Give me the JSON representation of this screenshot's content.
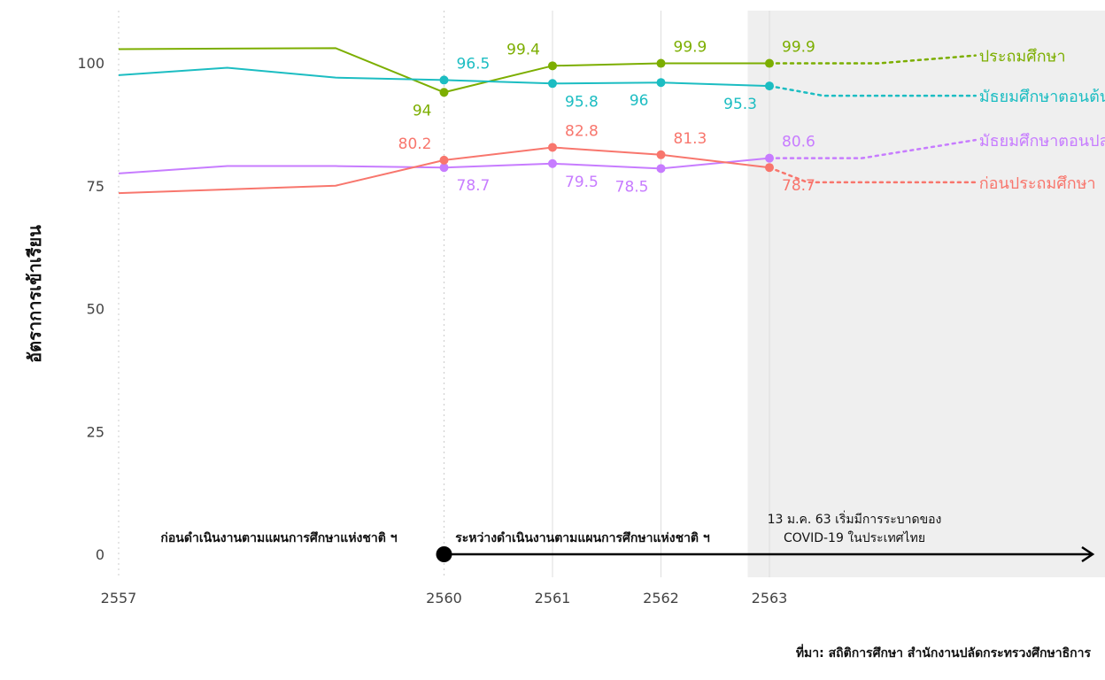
{
  "chart_data": {
    "type": "line",
    "ylabel": "อัตราการเข้าเรียน",
    "xlabel": "",
    "ylim": [
      -5,
      110
    ],
    "yticks": [
      0,
      25,
      50,
      75,
      100
    ],
    "xticks": [
      2557,
      2560,
      2561,
      2562,
      2563
    ],
    "grid": "vertical",
    "shaded_period": {
      "from": 2562.8,
      "to": 2566.1
    },
    "series": [
      {
        "name": "ประถมศึกษา",
        "color": "#7CAE00",
        "points": [
          [
            2557,
            102.8
          ],
          [
            2559,
            103.0
          ],
          [
            2560,
            94.0
          ],
          [
            2561,
            99.4
          ],
          [
            2562,
            99.9
          ],
          [
            2563,
            99.9
          ]
        ],
        "labeled": [
          [
            2560,
            94.0,
            "94",
            "below"
          ],
          [
            2561,
            99.4,
            "99.4",
            "above"
          ],
          [
            2562,
            99.9,
            "99.9",
            "above"
          ],
          [
            2563,
            99.9,
            "99.9",
            "above"
          ]
        ],
        "projection": [
          [
            2563,
            99.9
          ],
          [
            2564,
            99.9
          ],
          [
            2564.9,
            101.5
          ]
        ]
      },
      {
        "name": "มัธยมศึกษาตอนต้น",
        "color": "#1CBDC2",
        "points": [
          [
            2557,
            97.5
          ],
          [
            2558,
            99.0
          ],
          [
            2559,
            97.0
          ],
          [
            2560,
            96.5
          ],
          [
            2561,
            95.8
          ],
          [
            2562,
            96.0
          ],
          [
            2563,
            95.3
          ]
        ],
        "labeled": [
          [
            2560,
            96.5,
            "96.5",
            "above"
          ],
          [
            2561,
            95.8,
            "95.8",
            "below"
          ],
          [
            2562,
            96.0,
            "96",
            "below"
          ],
          [
            2563,
            95.3,
            "95.3",
            "below"
          ]
        ],
        "projection": [
          [
            2563,
            95.3
          ],
          [
            2563.5,
            93.3
          ],
          [
            2564.9,
            93.3
          ]
        ]
      },
      {
        "name": "มัธยมศึกษาตอนปลาย",
        "color": "#C77CFF",
        "points": [
          [
            2557,
            77.5
          ],
          [
            2558,
            79.0
          ],
          [
            2559,
            79.0
          ],
          [
            2560,
            78.7
          ],
          [
            2561,
            79.5
          ],
          [
            2562,
            78.5
          ],
          [
            2563,
            80.6
          ]
        ],
        "labeled": [
          [
            2560,
            78.7,
            "78.7",
            "below"
          ],
          [
            2561,
            79.5,
            "79.5",
            "below"
          ],
          [
            2562,
            78.5,
            "78.5",
            "below"
          ],
          [
            2563,
            80.6,
            "80.6",
            "above"
          ]
        ],
        "projection": [
          [
            2563,
            80.6
          ],
          [
            2563.85,
            80.6
          ],
          [
            2564.9,
            84.3
          ]
        ]
      },
      {
        "name": "ก่อนประถมศึกษา",
        "color": "#F8766D",
        "points": [
          [
            2557,
            73.5
          ],
          [
            2559,
            75.0
          ],
          [
            2560,
            80.2
          ],
          [
            2561,
            82.8
          ],
          [
            2562,
            81.3
          ],
          [
            2563,
            78.7
          ]
        ],
        "labeled": [
          [
            2560,
            80.2,
            "80.2",
            "above"
          ],
          [
            2561,
            82.8,
            "82.8",
            "above"
          ],
          [
            2562,
            81.3,
            "81.3",
            "above"
          ],
          [
            2563,
            78.7,
            "78.7",
            "below"
          ]
        ],
        "projection": [
          [
            2563,
            78.7
          ],
          [
            2563.35,
            75.7
          ],
          [
            2564.9,
            75.7
          ]
        ]
      }
    ],
    "annotations": {
      "before_plan": "ก่อนดำเนินงานตามแผนการศึกษาแห่งชาติ ฯ",
      "during_plan": "ระหว่างดำเนินงานตามแผนการศึกษาแห่งชาติ ฯ",
      "covid_line1": "13 ม.ค. 63 เริ่มมีการระบาดของ",
      "covid_line2": "COVID-19 ในประเทศไทย"
    },
    "source": "ที่มา: สถิติการศึกษา สำนักงานปลัดกระทรวงศึกษาธิการ"
  }
}
